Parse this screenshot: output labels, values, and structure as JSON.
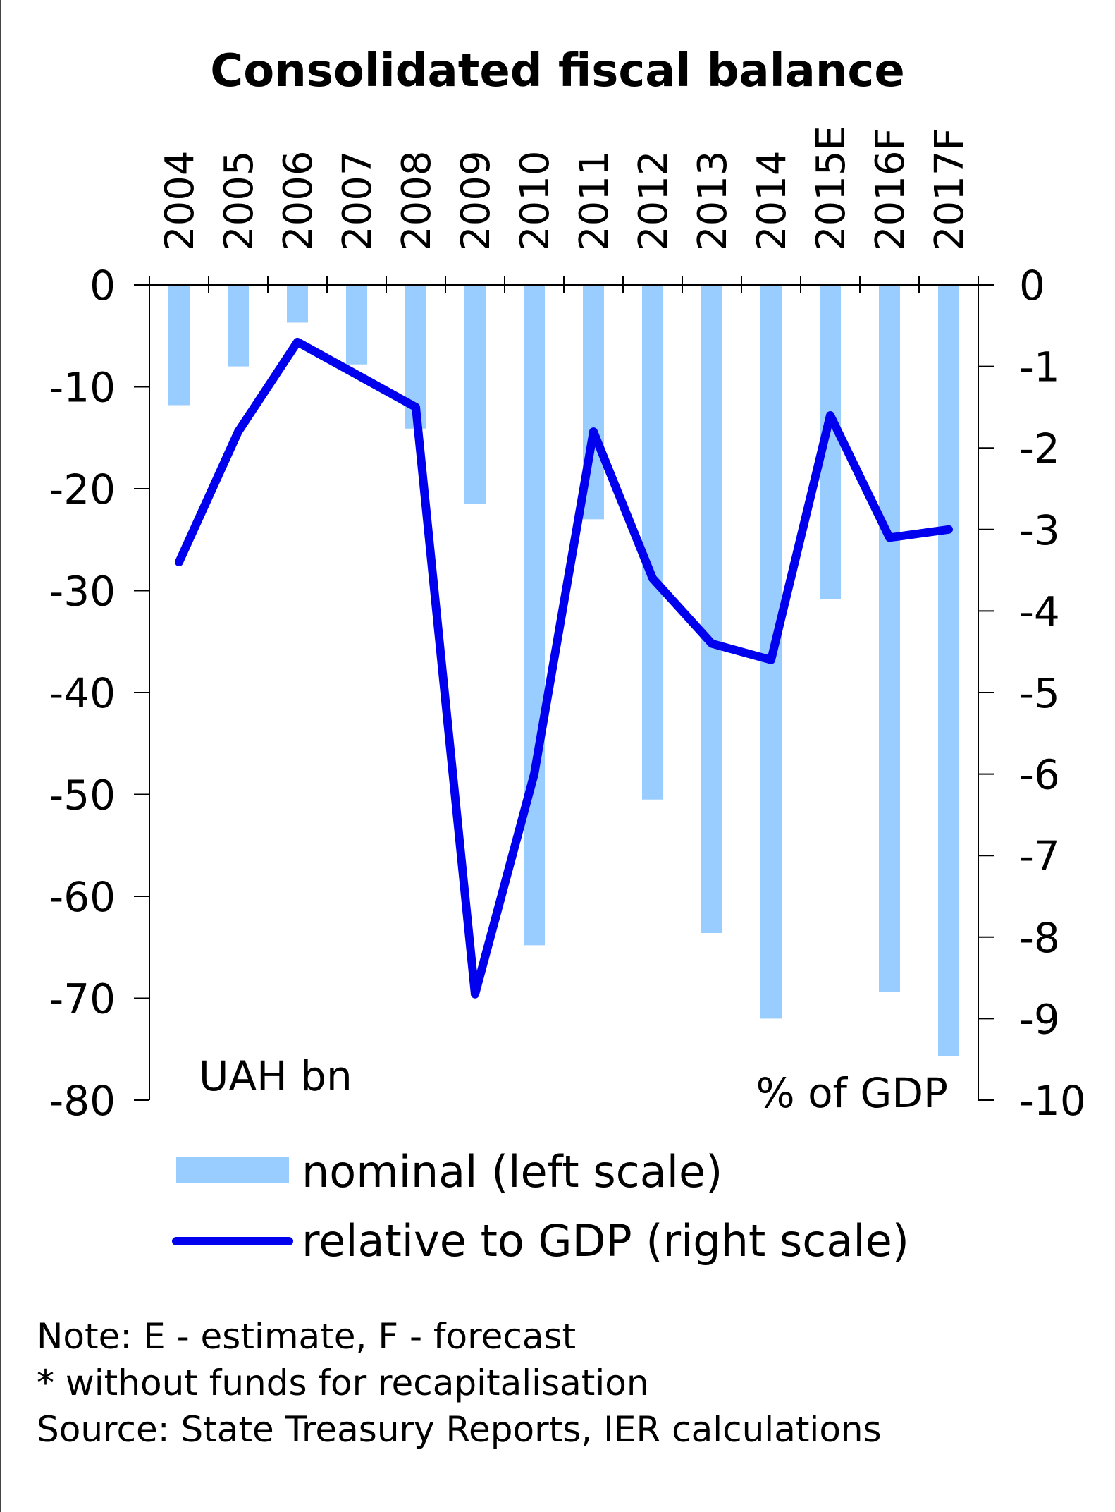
{
  "colors": {
    "bar": "#99ccff",
    "line": "#0000ee",
    "axis": "#000000"
  },
  "chart_data": {
    "type": "bar",
    "title": "Consolidated fiscal balance",
    "categories": [
      "2004",
      "2005",
      "2006",
      "2007",
      "2008",
      "2009",
      "2010",
      "2011",
      "2012",
      "2013",
      "2014",
      "2015E",
      "2016F",
      "2017F"
    ],
    "series": [
      {
        "name": "nominal (left scale)",
        "type": "bar",
        "axis": "left",
        "values": [
          -11.8,
          -8.0,
          -3.7,
          -7.8,
          -14.1,
          -21.5,
          -64.8,
          -23.0,
          -50.5,
          -63.6,
          -72.0,
          -30.8,
          -69.4,
          -75.7
        ]
      },
      {
        "name": "relative to GDP (right scale)",
        "type": "line",
        "axis": "right",
        "values": [
          -3.4,
          -1.8,
          -0.7,
          -1.1,
          -1.5,
          -8.7,
          -6.0,
          -1.8,
          -3.6,
          -4.4,
          -4.6,
          -1.6,
          -3.1,
          -3.0
        ]
      }
    ],
    "left_axis": {
      "label": "UAH bn",
      "ylim": [
        -80,
        0
      ],
      "ticks": [
        "0",
        "-10",
        "-20",
        "-30",
        "-40",
        "-50",
        "-60",
        "-70",
        "-80"
      ]
    },
    "right_axis": {
      "label": "% of GDP",
      "ylim": [
        -10,
        0
      ],
      "ticks": [
        "0",
        "-1",
        "-2",
        "-3",
        "-4",
        "-5",
        "-6",
        "-7",
        "-8",
        "-9",
        "-10"
      ]
    },
    "grid": false,
    "legend_position": "bottom"
  },
  "notes": [
    "Note: E - estimate, F - forecast",
    "* without funds for recapitalisation",
    "Source: State Treasury Reports, IER calculations"
  ]
}
